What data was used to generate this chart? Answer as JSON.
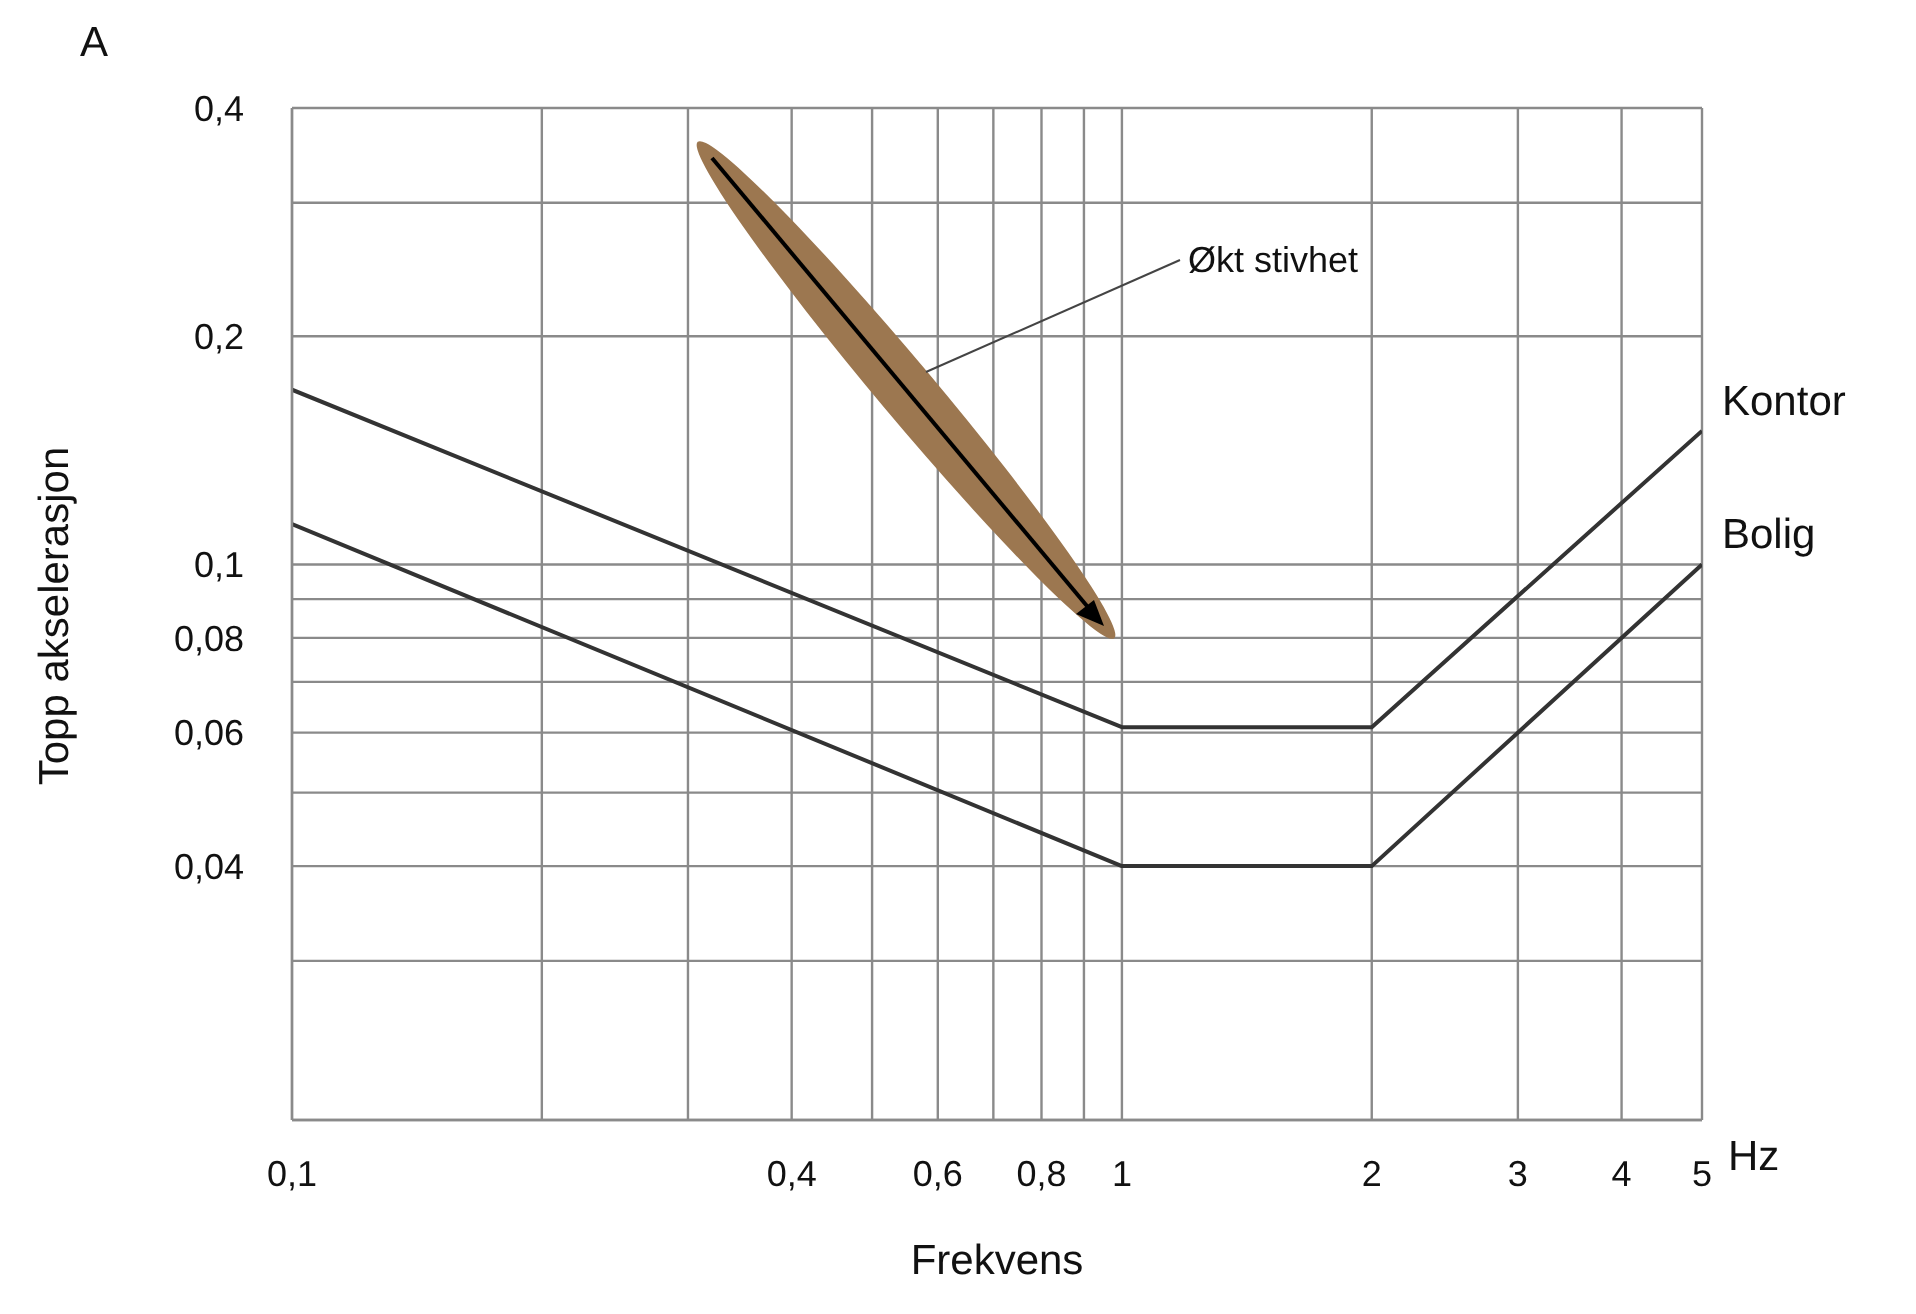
{
  "chart_data": {
    "type": "line",
    "xlabel": "Frekvens",
    "ylabel": "Topp akselerasjon",
    "log": "xy",
    "grid": true,
    "marker": "none",
    "line_style": "solid",
    "xlim": [
      0.1,
      5
    ],
    "xticks": [
      {
        "value": 0.1,
        "label": "0,1"
      },
      {
        "value": 0.2,
        "label": null
      },
      {
        "value": 0.3,
        "label": null
      },
      {
        "value": 0.4,
        "label": "0,4"
      },
      {
        "value": 0.5,
        "label": null
      },
      {
        "value": 0.6,
        "label": "0,6"
      },
      {
        "value": 0.7,
        "label": null
      },
      {
        "value": 0.8,
        "label": "0,8"
      },
      {
        "value": 0.9,
        "label": null
      },
      1,
      2,
      3,
      4,
      5
    ],
    "ylim": [
      0.0185,
      0.4
    ],
    "yticks": [
      {
        "value": 0.03,
        "label": null
      },
      {
        "value": 0.04,
        "label": "0,04"
      },
      {
        "value": 0.05,
        "label": null
      },
      {
        "value": 0.06,
        "label": "0,06"
      },
      {
        "value": 0.07,
        "label": null
      },
      {
        "value": 0.08,
        "label": "0,08"
      },
      {
        "value": 0.09,
        "label": null
      },
      {
        "value": 0.1,
        "label": "0,1"
      },
      {
        "value": 0.2,
        "label": "0,2"
      },
      {
        "value": 0.3,
        "label": null
      },
      {
        "value": 0.4,
        "label": "0,4"
      }
    ],
    "series": [
      {
        "name": "Kontor",
        "color": "#333333",
        "x": [
          0.1,
          1,
          2,
          5
        ],
        "values": [
          0.17,
          0.061,
          0.061,
          0.15
        ]
      },
      {
        "name": "Bolig",
        "color": "#333333",
        "x": [
          0.1,
          1,
          2,
          5
        ],
        "values": [
          0.113,
          0.04,
          0.04,
          0.1
        ]
      }
    ],
    "annotations": [
      "Økt stivhet",
      "A",
      "Hz"
    ]
  }
}
